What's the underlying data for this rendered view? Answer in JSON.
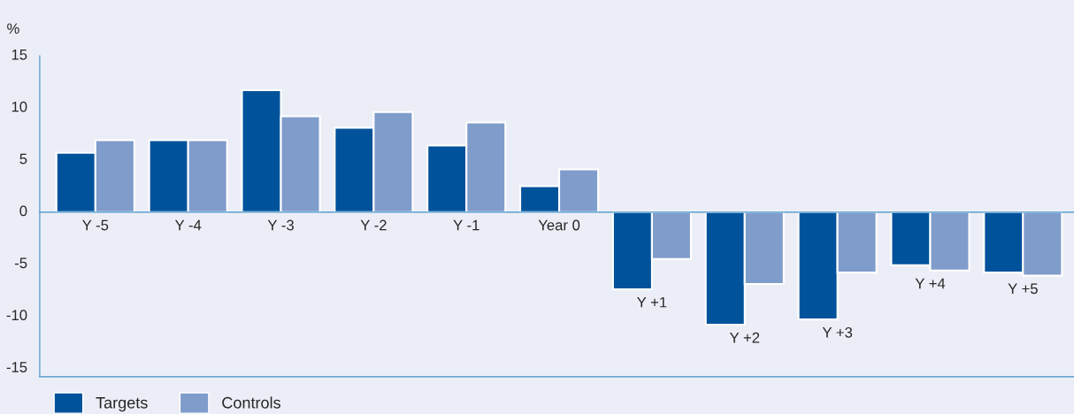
{
  "chart_data": {
    "type": "bar",
    "ylabel": "%",
    "categories": [
      "Y -5",
      "Y -4",
      "Y -3",
      "Y -2",
      "Y -1",
      "Year 0",
      "Y +1",
      "Y +2",
      "Y +3",
      "Y +4",
      "Y +5"
    ],
    "series": [
      {
        "name": "Targets",
        "color": "#00529b",
        "values": [
          5.7,
          6.9,
          11.7,
          8.1,
          6.4,
          2.5,
          -7.4,
          -10.8,
          -10.3,
          -5.1,
          -5.8
        ]
      },
      {
        "name": "Controls",
        "color": "#7f9ccb",
        "values": [
          6.9,
          6.9,
          9.2,
          9.6,
          8.6,
          4.1,
          -4.5,
          -6.9,
          -5.8,
          -5.6,
          -6.1
        ]
      }
    ],
    "ylim": [
      -15.8,
      15
    ],
    "yticks": [
      -15,
      -10,
      -5,
      0,
      5,
      10,
      15
    ],
    "grid": false,
    "legend": "bottom left"
  }
}
